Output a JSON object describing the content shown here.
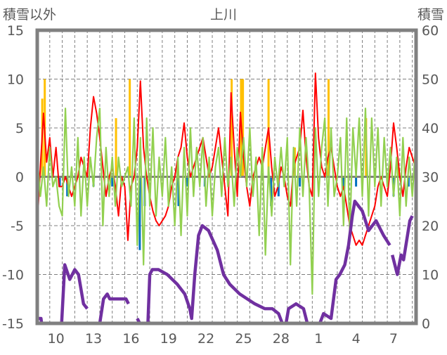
{
  "chart_data": {
    "type": "line",
    "title": "上川",
    "ylabel": "積雪以外",
    "y2label": "積雪",
    "ylim": [
      -15,
      15
    ],
    "y2lim": [
      0,
      60
    ],
    "yticks": [
      "15",
      "10",
      "5",
      "0",
      "-5",
      "-10",
      "-15"
    ],
    "y2ticks": [
      "60",
      "50",
      "40",
      "30",
      "20",
      "10",
      "0"
    ],
    "xlim_days": [
      0,
      30.3
    ],
    "xticks": [
      {
        "day": 1,
        "label": "10"
      },
      {
        "day": 4,
        "label": "13"
      },
      {
        "day": 7,
        "label": "16"
      },
      {
        "day": 10,
        "label": "19"
      },
      {
        "day": 13,
        "label": "22"
      },
      {
        "day": 16,
        "label": "25"
      },
      {
        "day": 19,
        "label": "28"
      },
      {
        "day": 22,
        "label": "1"
      },
      {
        "day": 25,
        "label": "4"
      },
      {
        "day": 28,
        "label": "7"
      }
    ],
    "grid": "dashed",
    "colors": {
      "red": "#ff0000",
      "green": "#92d050",
      "blue": "#0070c0",
      "orange": "#ffc000",
      "purple": "#7030a0",
      "frame": "#808080"
    },
    "series": [
      {
        "name": "red-line",
        "color": "#ff0000",
        "axis": "left",
        "step": 0.25,
        "values": [
          -5,
          1,
          6.5,
          1.5,
          4,
          0,
          3,
          -1,
          -1,
          0,
          -1,
          -2,
          -1,
          0,
          2,
          1,
          0,
          5,
          8.2,
          6.5,
          4,
          1,
          -2,
          0,
          1,
          -1,
          -4,
          0,
          -1,
          -6.5,
          -1,
          0,
          3,
          9.8,
          3,
          0,
          -2,
          -3.5,
          -4.5,
          -5,
          -4.5,
          -4,
          -3,
          -1,
          0,
          2,
          3,
          5.5,
          2,
          0,
          1,
          2,
          3,
          4,
          2,
          0,
          1,
          3,
          5,
          2,
          -1,
          -4,
          8.6,
          3,
          -2,
          6.6,
          2,
          -1,
          -3,
          0,
          1,
          2,
          1,
          3,
          5,
          1,
          -2,
          -1,
          1,
          0,
          -2,
          -3,
          1,
          2,
          3,
          6.8,
          2,
          -1,
          -2,
          10.6,
          4,
          1,
          0,
          2,
          3,
          1,
          -1,
          -2,
          -1,
          -3,
          -5,
          -6,
          -7,
          -6.5,
          -7,
          -6,
          -5,
          -4,
          -3,
          -1,
          0,
          -1,
          -2,
          1,
          5.5,
          3,
          0,
          -2,
          1,
          3,
          2,
          1
        ]
      },
      {
        "name": "green-line",
        "color": "#92d050",
        "axis": "left",
        "step": 0.25,
        "values": [
          2,
          -2,
          1,
          -3,
          3,
          -1,
          0,
          -3,
          -4,
          7,
          -2,
          1,
          -3,
          4,
          -4,
          2,
          -3,
          2,
          -1,
          4,
          7,
          -5,
          3,
          -2,
          2,
          -3,
          2,
          -1,
          0,
          1,
          -3,
          6,
          -7,
          4,
          -9,
          6,
          -3,
          5,
          -4,
          2,
          -2,
          4,
          -3,
          1,
          -5,
          2,
          -6,
          3,
          -4,
          5,
          -2,
          3,
          -1,
          4,
          -3,
          2,
          -4,
          1,
          3,
          -2,
          4,
          -1,
          2,
          -3,
          3,
          0,
          4,
          -1,
          5,
          -2,
          2,
          -6,
          3,
          -8,
          1,
          -4,
          2,
          -1,
          3,
          -1,
          4,
          -9,
          3,
          -3,
          5,
          -2,
          4,
          -1,
          -12,
          5,
          -2,
          3,
          6,
          -3,
          5,
          -2,
          0,
          4,
          -5,
          6,
          -6,
          5,
          0,
          6,
          -2,
          7,
          -4,
          6,
          -1,
          5,
          -3,
          4,
          -1,
          3,
          -2,
          2,
          -4,
          4,
          -3,
          2,
          -2,
          3
        ]
      },
      {
        "name": "snow-depth",
        "color": "#7030a0",
        "axis": "right",
        "points": [
          [
            0,
            1
          ],
          [
            0.3,
            1
          ],
          [
            0.35,
            0
          ],
          [
            1.95,
            0
          ],
          [
            2.2,
            12
          ],
          [
            2.6,
            9
          ],
          [
            3.0,
            11
          ],
          [
            3.3,
            10
          ],
          [
            3.7,
            4
          ],
          [
            4.0,
            3
          ],
          null,
          [
            4.3,
            0
          ],
          [
            5.0,
            0
          ],
          [
            5.3,
            5
          ],
          [
            5.6,
            6
          ],
          [
            5.8,
            5
          ],
          [
            7.1,
            5
          ],
          [
            7.3,
            4
          ],
          null,
          [
            8.0,
            1
          ],
          [
            8.2,
            0
          ],
          [
            8.85,
            0
          ],
          [
            9.0,
            10
          ],
          [
            9.2,
            11
          ],
          [
            9.7,
            11
          ],
          [
            10.4,
            10
          ],
          [
            11.2,
            8
          ],
          [
            11.8,
            6
          ],
          [
            12.2,
            3
          ],
          [
            12.35,
            1
          ],
          [
            12.6,
            10
          ],
          [
            12.9,
            18
          ],
          [
            13.2,
            20
          ],
          [
            13.7,
            19
          ],
          [
            14.4,
            15
          ],
          [
            14.9,
            10
          ],
          [
            15.4,
            8
          ],
          [
            16.2,
            6
          ],
          [
            17.4,
            4
          ],
          [
            18.2,
            3
          ],
          [
            18.8,
            3
          ],
          [
            19.3,
            2
          ],
          [
            19.6,
            0
          ],
          [
            19.9,
            0
          ],
          [
            20.1,
            3
          ],
          [
            20.7,
            4
          ],
          [
            21.3,
            3
          ],
          [
            21.6,
            0
          ],
          [
            22.6,
            0
          ],
          [
            22.9,
            2
          ],
          [
            23.5,
            1
          ],
          [
            23.9,
            9
          ],
          [
            24.2,
            10
          ],
          [
            24.6,
            12
          ],
          [
            24.9,
            16
          ],
          [
            25.2,
            22
          ],
          [
            25.4,
            25
          ],
          [
            26.0,
            23
          ],
          [
            26.5,
            19
          ],
          [
            27.1,
            21
          ],
          [
            27.7,
            18
          ],
          [
            28.2,
            16
          ],
          null,
          [
            28.4,
            14
          ],
          [
            28.8,
            10
          ],
          [
            29.1,
            14
          ],
          [
            29.3,
            13
          ],
          [
            29.8,
            21
          ],
          [
            30.0,
            22
          ]
        ]
      }
    ],
    "bars": [
      {
        "name": "orange-bars",
        "color": "#ffc000",
        "points": [
          [
            0.4,
            8
          ],
          [
            0.6,
            10
          ],
          [
            6.3,
            6
          ],
          [
            7.4,
            10
          ],
          [
            15.55,
            10
          ],
          [
            16.3,
            10
          ],
          [
            16.45,
            10
          ],
          [
            18.5,
            10
          ],
          [
            20.6,
            3
          ],
          [
            23.3,
            10
          ],
          [
            26.3,
            6
          ],
          [
            28.9,
            1
          ]
        ]
      },
      {
        "name": "blue-bars",
        "color": "#0070c0",
        "points": [
          [
            1.8,
            -1
          ],
          [
            2.4,
            -2
          ],
          [
            4.5,
            -1
          ],
          [
            6.0,
            -1
          ],
          [
            8.2,
            -7.5
          ],
          [
            8.6,
            -3
          ],
          [
            11.3,
            -3
          ],
          [
            12.0,
            -1
          ],
          [
            13.4,
            -1
          ],
          [
            18.7,
            -3
          ],
          [
            19.3,
            -2
          ],
          [
            21.0,
            -1
          ],
          [
            24.5,
            -1
          ],
          [
            25.5,
            -1
          ],
          [
            28.5,
            -2
          ],
          [
            29.7,
            -1
          ]
        ]
      }
    ]
  }
}
